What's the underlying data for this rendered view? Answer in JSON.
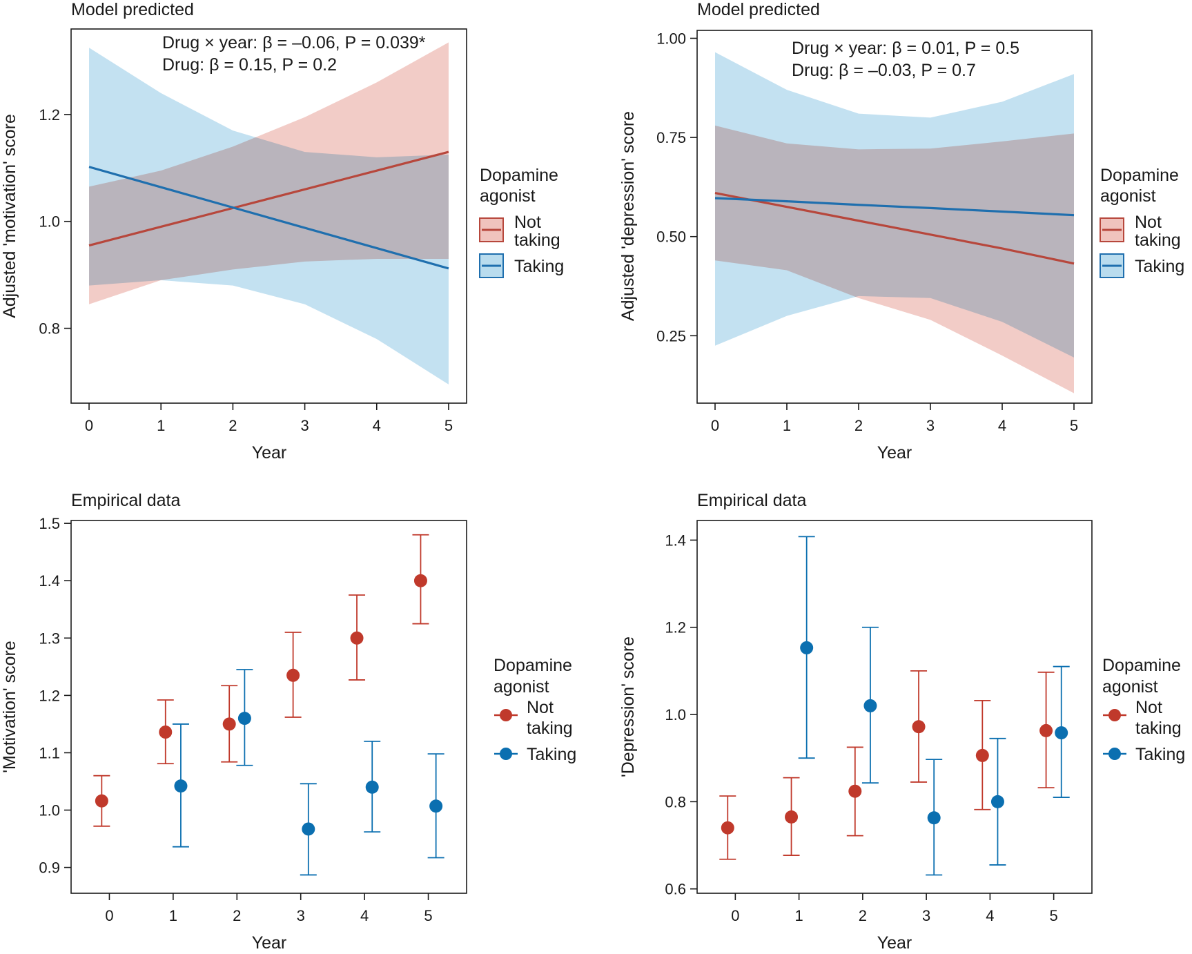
{
  "colors": {
    "not_taking": "#b7473c",
    "not_taking_band": "#f0c3bd",
    "not_taking_point": "#c0392b",
    "taking": "#1f6fae",
    "taking_band": "#b9dcee",
    "taking_point": "#0b6fb0",
    "overlap_hint": "#b9b8c6",
    "axis": "#1a1a1a"
  },
  "legend": {
    "title_line1": "Dopamine",
    "title_line2": "agonist",
    "not_taking_line1": "Not",
    "not_taking_line2": "taking",
    "taking": "Taking"
  },
  "chart_data": [
    {
      "id": "motivation-model",
      "type": "line",
      "title": "Model predicted",
      "xlabel": "Year",
      "ylabel": "Adjusted 'motivation' score",
      "xlim": [
        -0.25,
        5.25
      ],
      "ylim": [
        0.66,
        1.36
      ],
      "xticks": [
        0,
        1,
        2,
        3,
        4,
        5
      ],
      "yticks": [
        0.8,
        1.0,
        1.2
      ],
      "ytick_labels": [
        "0.8",
        "1.0",
        "1.2"
      ],
      "annotation_line1": "Drug × year: β = –0.06, P = 0.039*",
      "annotation_line2": "Drug: β = 0.15, P = 0.2",
      "series": [
        {
          "name": "Not taking",
          "key": "not_taking",
          "x": [
            0,
            1,
            2,
            3,
            4,
            5
          ],
          "y": [
            0.955,
            0.99,
            1.025,
            1.06,
            1.095,
            1.13
          ],
          "lower": [
            0.845,
            0.89,
            0.91,
            0.925,
            0.93,
            0.93
          ],
          "upper": [
            1.065,
            1.095,
            1.14,
            1.195,
            1.26,
            1.335
          ]
        },
        {
          "name": "Taking",
          "key": "taking",
          "x": [
            0,
            1,
            2,
            3,
            4,
            5
          ],
          "y": [
            1.102,
            1.064,
            1.026,
            0.988,
            0.95,
            0.912
          ],
          "lower": [
            0.88,
            0.89,
            0.88,
            0.845,
            0.78,
            0.695
          ],
          "upper": [
            1.325,
            1.24,
            1.17,
            1.13,
            1.12,
            1.125
          ]
        }
      ]
    },
    {
      "id": "depression-model",
      "type": "line",
      "title": "Model predicted",
      "xlabel": "Year",
      "ylabel": "Adjusted 'depression' score",
      "xlim": [
        -0.25,
        5.25
      ],
      "ylim": [
        0.08,
        1.02
      ],
      "xticks": [
        0,
        1,
        2,
        3,
        4,
        5
      ],
      "yticks": [
        0.25,
        0.5,
        0.75,
        1.0
      ],
      "ytick_labels": [
        "0.25",
        "0.50",
        "0.75",
        "1.00"
      ],
      "annotation_line1": "Drug × year: β = 0.01, P = 0.5",
      "annotation_line2": "Drug: β = –0.03, P = 0.7",
      "series": [
        {
          "name": "Not taking",
          "key": "not_taking",
          "x": [
            0,
            1,
            2,
            3,
            4,
            5
          ],
          "y": [
            0.61,
            0.575,
            0.54,
            0.505,
            0.47,
            0.432
          ],
          "lower": [
            0.44,
            0.415,
            0.345,
            0.29,
            0.2,
            0.105
          ],
          "upper": [
            0.78,
            0.735,
            0.72,
            0.722,
            0.74,
            0.76
          ]
        },
        {
          "name": "Taking",
          "key": "taking",
          "x": [
            0,
            1,
            2,
            3,
            4,
            5
          ],
          "y": [
            0.597,
            0.589,
            0.58,
            0.572,
            0.563,
            0.554
          ],
          "lower": [
            0.225,
            0.3,
            0.35,
            0.345,
            0.285,
            0.195
          ],
          "upper": [
            0.965,
            0.87,
            0.81,
            0.8,
            0.84,
            0.91
          ]
        }
      ]
    },
    {
      "id": "motivation-empirical",
      "type": "scatter",
      "title": "Empirical data",
      "xlabel": "Year",
      "ylabel": "'Motivation' score",
      "xlim": [
        -0.6,
        5.6
      ],
      "ylim": [
        0.855,
        1.505
      ],
      "xticks": [
        0,
        1,
        2,
        3,
        4,
        5
      ],
      "yticks": [
        0.9,
        1.0,
        1.1,
        1.2,
        1.3,
        1.4,
        1.5
      ],
      "ytick_labels": [
        "0.9",
        "1.0",
        "1.1",
        "1.2",
        "1.3",
        "1.4",
        "1.5"
      ],
      "series": [
        {
          "name": "Not taking",
          "key": "not_taking",
          "x": [
            0,
            1,
            2,
            3,
            4,
            5
          ],
          "y": [
            1.016,
            1.136,
            1.15,
            1.235,
            1.3,
            1.4
          ],
          "lower": [
            0.972,
            1.081,
            1.084,
            1.162,
            1.227,
            1.325
          ],
          "upper": [
            1.06,
            1.192,
            1.217,
            1.31,
            1.375,
            1.48
          ]
        },
        {
          "name": "Taking",
          "key": "taking",
          "x": [
            1,
            2,
            3,
            4,
            5
          ],
          "y": [
            1.042,
            1.16,
            0.967,
            1.04,
            1.007
          ],
          "lower": [
            0.936,
            1.078,
            0.887,
            0.962,
            0.917
          ],
          "upper": [
            1.15,
            1.245,
            1.046,
            1.12,
            1.098
          ]
        }
      ]
    },
    {
      "id": "depression-empirical",
      "type": "scatter",
      "title": "Empirical data",
      "xlabel": "Year",
      "ylabel": "'Depression' score",
      "xlim": [
        -0.6,
        5.6
      ],
      "ylim": [
        0.59,
        1.445
      ],
      "xticks": [
        0,
        1,
        2,
        3,
        4,
        5
      ],
      "yticks": [
        0.6,
        0.8,
        1.0,
        1.2,
        1.4
      ],
      "ytick_labels": [
        "0.6",
        "0.8",
        "1.0",
        "1.2",
        "1.4"
      ],
      "series": [
        {
          "name": "Not taking",
          "key": "not_taking",
          "x": [
            0,
            1,
            2,
            3,
            4,
            5
          ],
          "y": [
            0.74,
            0.765,
            0.824,
            0.972,
            0.906,
            0.963
          ],
          "lower": [
            0.668,
            0.677,
            0.722,
            0.845,
            0.782,
            0.832
          ],
          "upper": [
            0.813,
            0.855,
            0.925,
            1.1,
            1.032,
            1.097
          ]
        },
        {
          "name": "Taking",
          "key": "taking",
          "x": [
            0,
            1,
            2,
            3,
            4,
            5
          ],
          "y": [
            null,
            1.153,
            1.02,
            0.763,
            0.8,
            0.958
          ],
          "lower": [
            null,
            0.9,
            0.843,
            0.632,
            0.655,
            0.81
          ],
          "upper": [
            null,
            1.408,
            1.2,
            0.897,
            0.945,
            1.11
          ]
        }
      ]
    }
  ]
}
